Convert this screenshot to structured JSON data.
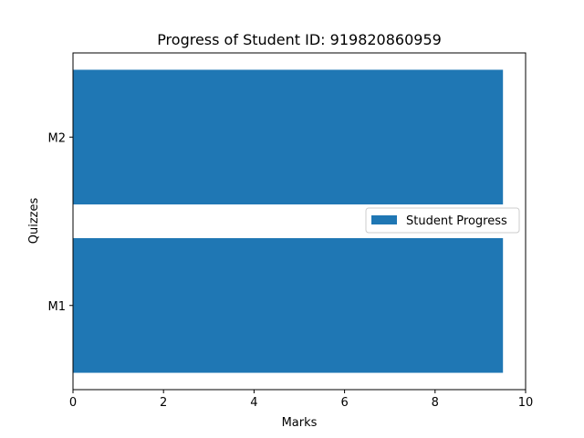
{
  "chart_data": {
    "type": "bar",
    "orientation": "horizontal",
    "title": "Progress of Student ID: 919820860959",
    "xlabel": "Marks",
    "ylabel": "Quizzes",
    "categories": [
      "M1",
      "M2"
    ],
    "series": [
      {
        "name": "Student Progress",
        "values": [
          9.5,
          9.5
        ]
      }
    ],
    "xlim": [
      0,
      10
    ],
    "xticks": [
      "0",
      "2",
      "4",
      "6",
      "8",
      "10"
    ],
    "grid": false,
    "legend_position": "center-right",
    "colors": {
      "bar": "#1f77b4"
    }
  }
}
